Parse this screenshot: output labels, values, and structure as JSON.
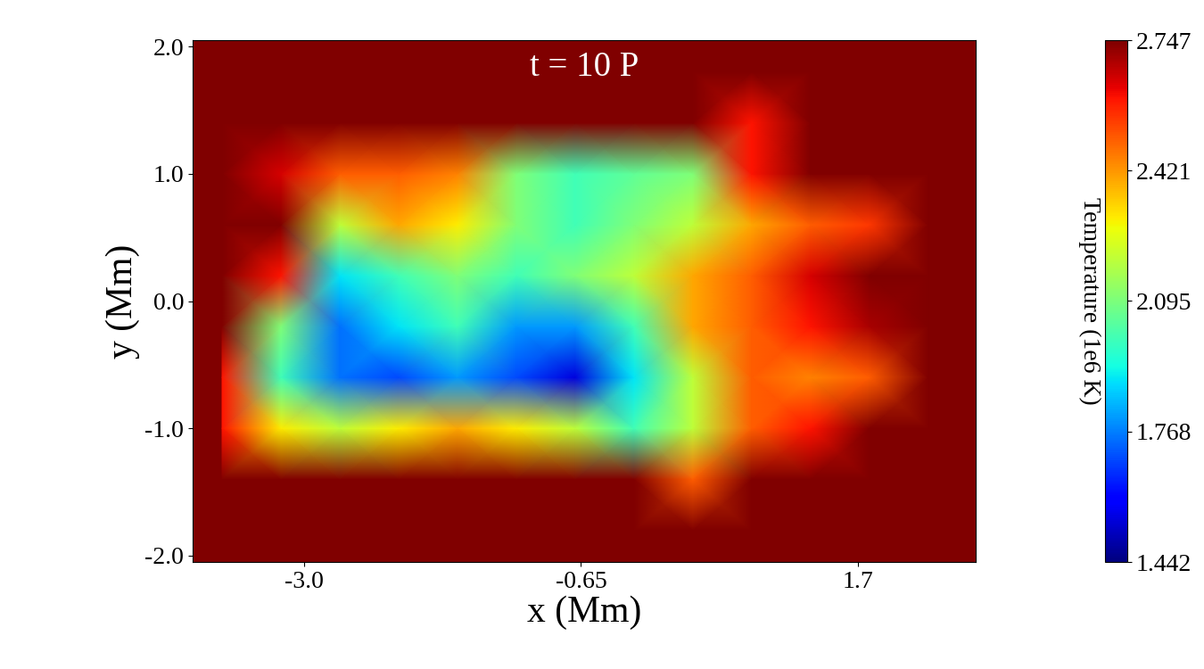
{
  "chart_data": {
    "type": "heatmap",
    "title": "t = 10 P",
    "xlabel": "x (Mm)",
    "ylabel": "y (Mm)",
    "x": [
      -3.7,
      -3.2,
      -2.7,
      -2.2,
      -1.7,
      -1.2,
      -0.7,
      -0.2,
      0.3,
      0.8,
      1.3,
      1.8,
      2.3
    ],
    "y": [
      -1.8,
      -1.4,
      -1.0,
      -0.6,
      -0.2,
      0.2,
      0.6,
      1.0,
      1.4,
      1.8
    ],
    "values": [
      [
        2.747,
        2.747,
        2.747,
        2.747,
        2.747,
        2.747,
        2.747,
        2.747,
        2.747,
        2.747,
        2.747,
        2.747,
        2.747
      ],
      [
        2.747,
        2.747,
        2.747,
        2.747,
        2.747,
        2.747,
        2.747,
        2.747,
        2.5,
        2.747,
        2.747,
        2.747,
        2.747
      ],
      [
        2.6,
        2.3,
        2.2,
        2.3,
        2.4,
        2.3,
        2.2,
        2.0,
        2.2,
        2.5,
        2.6,
        2.747,
        2.747
      ],
      [
        2.6,
        2.0,
        1.75,
        1.7,
        1.8,
        1.7,
        1.55,
        1.9,
        2.2,
        2.5,
        2.45,
        2.5,
        2.747
      ],
      [
        2.747,
        2.1,
        1.75,
        1.9,
        2.0,
        1.8,
        1.8,
        2.0,
        2.4,
        2.5,
        2.6,
        2.7,
        2.747
      ],
      [
        2.747,
        2.6,
        1.9,
        2.0,
        2.1,
        2.0,
        2.1,
        2.2,
        2.4,
        2.5,
        2.65,
        2.747,
        2.747
      ],
      [
        2.747,
        2.747,
        2.2,
        2.4,
        2.3,
        2.1,
        2.0,
        2.1,
        2.2,
        2.4,
        2.5,
        2.55,
        2.747
      ],
      [
        2.747,
        2.65,
        2.5,
        2.5,
        2.45,
        2.1,
        2.0,
        2.05,
        2.1,
        2.6,
        2.747,
        2.747,
        2.747
      ],
      [
        2.747,
        2.747,
        2.747,
        2.747,
        2.747,
        2.747,
        2.747,
        2.747,
        2.747,
        2.6,
        2.747,
        2.747,
        2.747
      ],
      [
        2.747,
        2.747,
        2.747,
        2.747,
        2.747,
        2.747,
        2.747,
        2.747,
        2.747,
        2.747,
        2.747,
        2.747,
        2.747
      ]
    ],
    "color": "jet",
    "xlim": [
      -3.95,
      2.7
    ],
    "ylim": [
      -2.05,
      2.05
    ],
    "xticks": [
      -3.0,
      -0.65,
      1.7
    ],
    "yticks": [
      -2.0,
      -1.0,
      0.0,
      1.0,
      2.0
    ],
    "colorbar_label": "Temperature (1e6 K)",
    "colorbar_range": [
      1.442,
      2.747
    ],
    "colorbar_ticks": [
      1.442,
      1.768,
      2.095,
      2.421,
      2.747
    ]
  }
}
